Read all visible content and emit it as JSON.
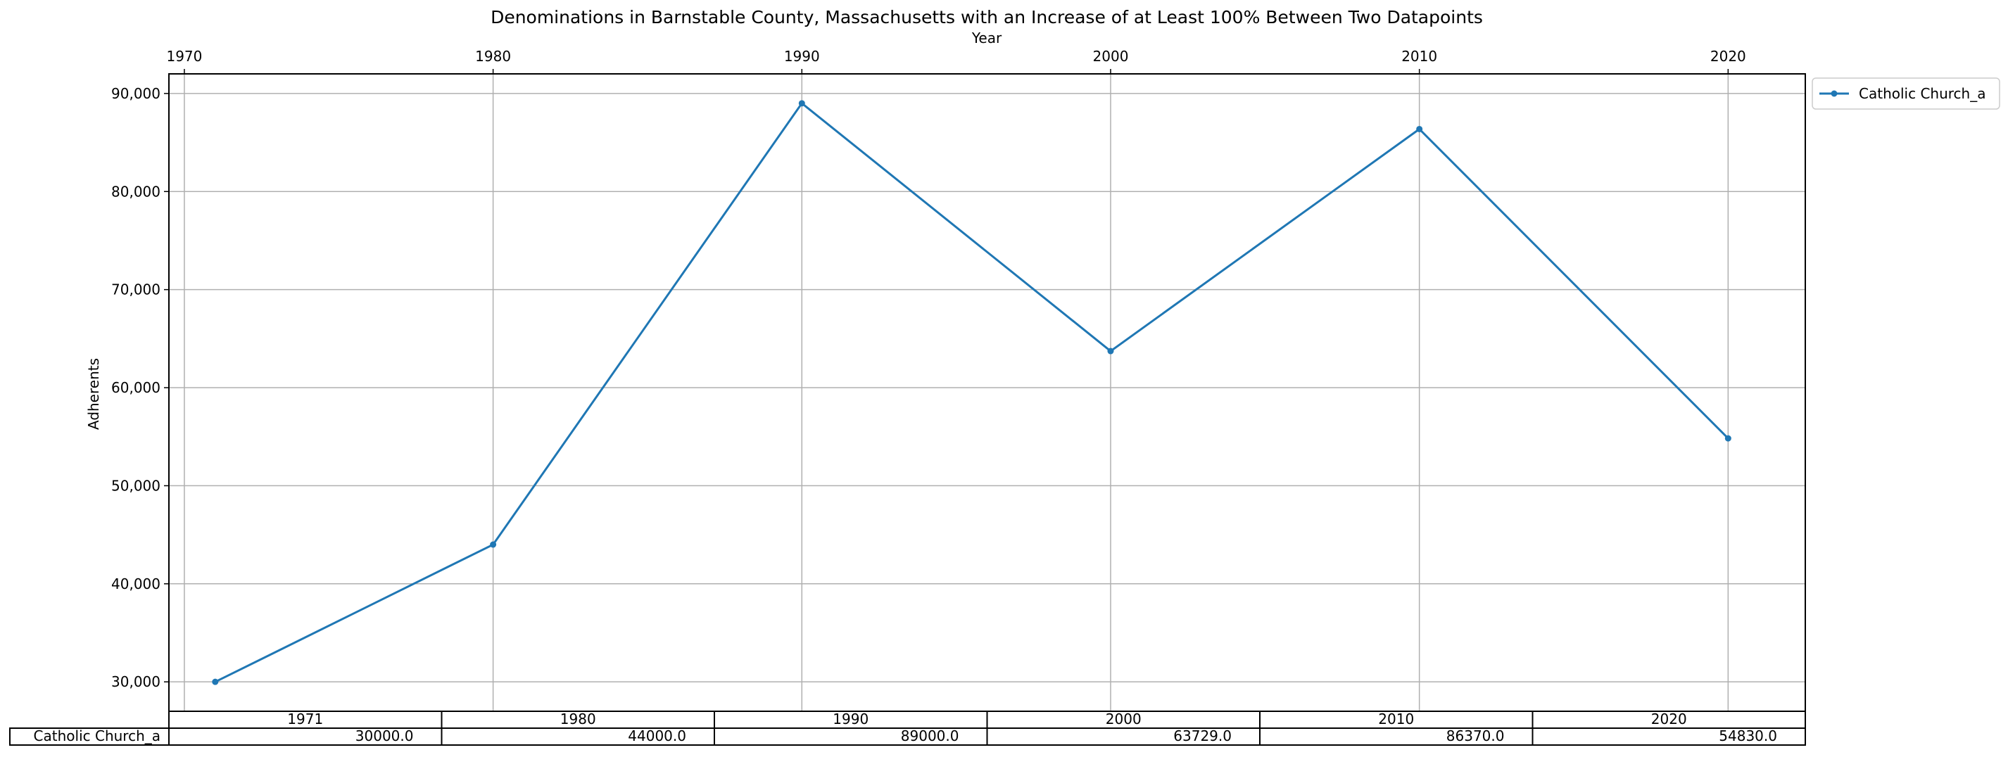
{
  "chart_data": {
    "type": "line",
    "title": "Denominations in Barnstable County, Massachusetts with an Increase of at Least 100% Between Two Datapoints",
    "xlabel": "Year",
    "ylabel": "Adherents",
    "x_ticks": [
      "1970",
      "1980",
      "1990",
      "2000",
      "2010",
      "2020"
    ],
    "xlim": [
      1969.5,
      2022.5
    ],
    "y_ticks": [
      "30,000",
      "40,000",
      "50,000",
      "60,000",
      "70,000",
      "80,000",
      "90,000"
    ],
    "ylim": [
      27000,
      92000
    ],
    "grid": true,
    "legend_position": "outside top-right",
    "x": [
      1971,
      1980,
      1990,
      2000,
      2010,
      2020
    ],
    "series": [
      {
        "name": "Catholic Church_a",
        "color": "#1f77b4",
        "values": [
          30000,
          44000,
          89000,
          63729,
          86370,
          54830
        ]
      }
    ],
    "table": {
      "col_labels": [
        "1971",
        "1980",
        "1990",
        "2000",
        "2010",
        "2020"
      ],
      "row_label": "Catholic Church_a",
      "cells": [
        "30000.0",
        "44000.0",
        "89000.0",
        "63729.0",
        "86370.0",
        "54830.0"
      ]
    }
  }
}
